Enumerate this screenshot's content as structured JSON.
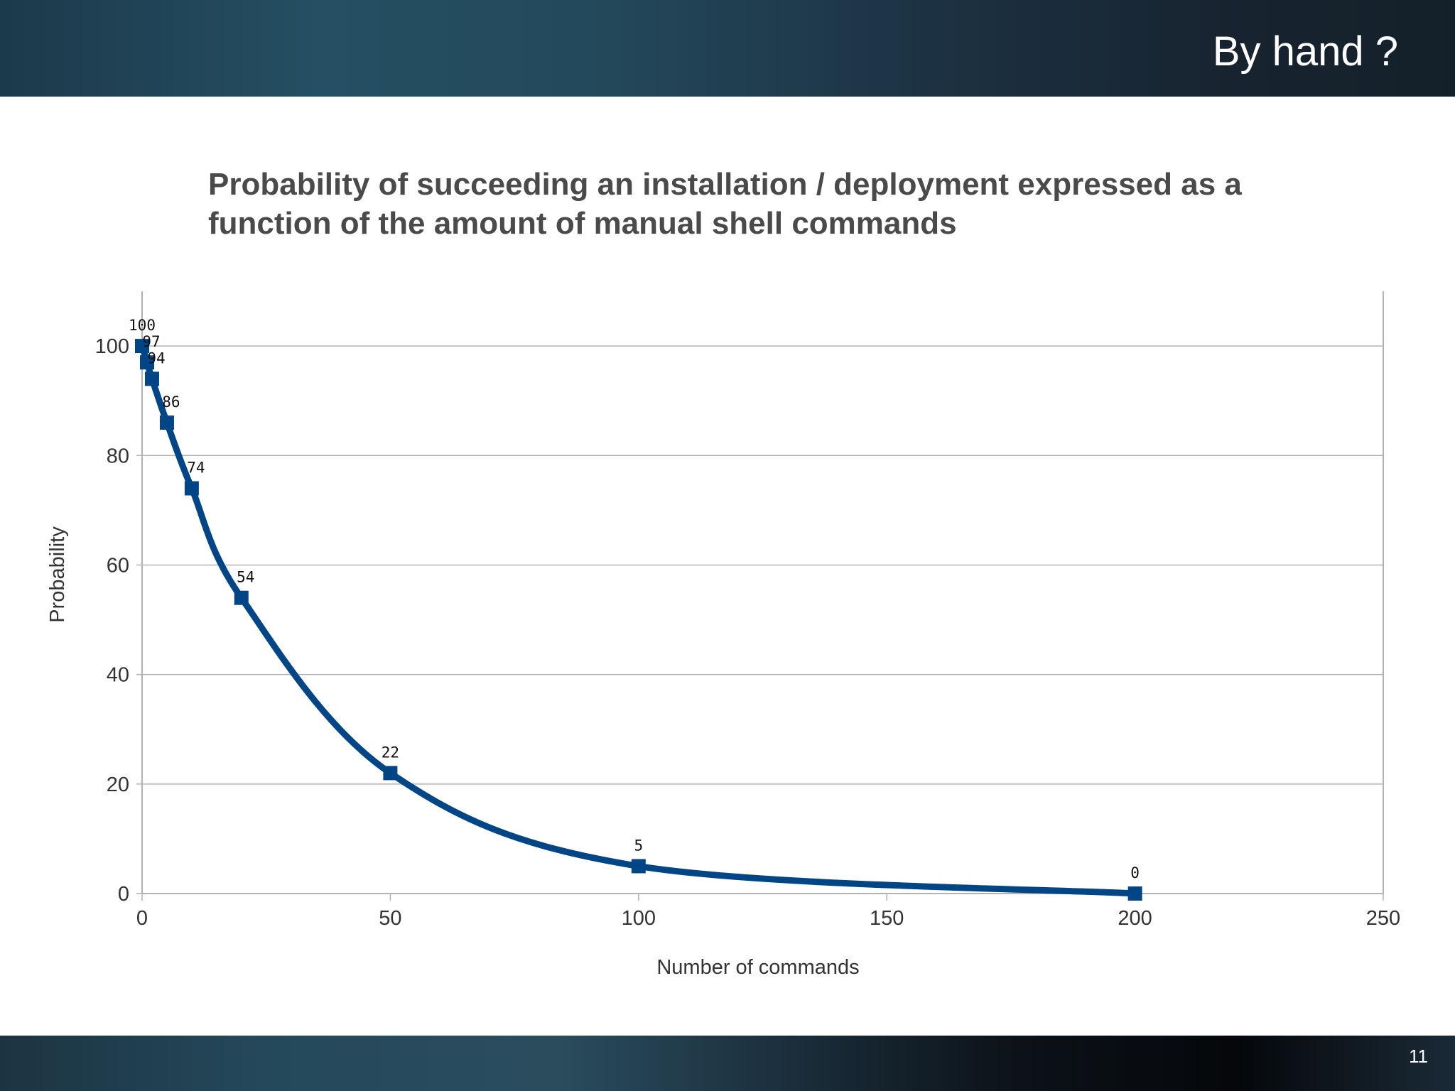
{
  "slide": {
    "title": "By hand ?",
    "page_number": "11"
  },
  "chart_data": {
    "type": "line",
    "title": "Probability of succeeding an installation / deployment expressed as a function of the amount of manual shell commands",
    "xlabel": "Number of commands",
    "ylabel": "Probability",
    "x": [
      0,
      1,
      2,
      5,
      10,
      20,
      50,
      100,
      200
    ],
    "series": [
      {
        "values": [
          100,
          97,
          94,
          86,
          74,
          54,
          22,
          5,
          0
        ]
      }
    ],
    "data_labels": [
      "100",
      "97",
      "94",
      "86",
      "74",
      "54",
      "22",
      "5",
      "0"
    ],
    "xlim": [
      0,
      250
    ],
    "ylim": [
      0,
      110
    ],
    "xticks": [
      0,
      50,
      100,
      150,
      200,
      250
    ],
    "yticks": [
      0,
      20,
      40,
      60,
      80,
      100
    ],
    "grid": "horizontal",
    "legend": "none",
    "colors": {
      "series": "#004586",
      "grid": "#b3b3b3",
      "axis_text": "#333333"
    }
  }
}
